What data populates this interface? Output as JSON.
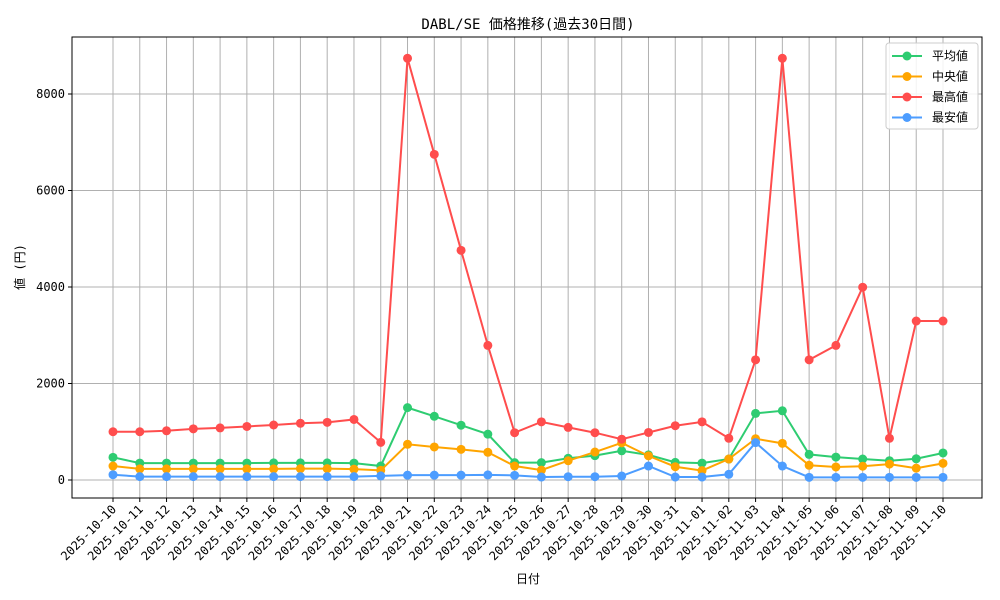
{
  "chart_data": {
    "type": "line",
    "title": "DABL/SE 価格推移(過去30日間)",
    "xlabel": "日付",
    "ylabel": "値 (円)",
    "ylim": [
      -400,
      9150
    ],
    "yticks": [
      0,
      2000,
      4000,
      6000,
      8000
    ],
    "grid": true,
    "legend_position": "upper right",
    "x": [
      "2025-10-10",
      "2025-10-11",
      "2025-10-12",
      "2025-10-13",
      "2025-10-14",
      "2025-10-15",
      "2025-10-16",
      "2025-10-17",
      "2025-10-18",
      "2025-10-19",
      "2025-10-20",
      "2025-10-21",
      "2025-10-22",
      "2025-10-23",
      "2025-10-24",
      "2025-10-25",
      "2025-10-26",
      "2025-10-27",
      "2025-10-28",
      "2025-10-29",
      "2025-10-30",
      "2025-10-31",
      "2025-11-01",
      "2025-11-02",
      "2025-11-03",
      "2025-11-04",
      "2025-11-05",
      "2025-11-06",
      "2025-11-07",
      "2025-11-08",
      "2025-11-09",
      "2025-11-10"
    ],
    "series": [
      {
        "name": "平均値",
        "color": "#2ecc71",
        "values": [
          470,
          350,
          350,
          350,
          350,
          350,
          355,
          355,
          355,
          350,
          290,
          1500,
          1320,
          1135,
          950,
          360,
          360,
          450,
          505,
          605,
          520,
          365,
          350,
          435,
          1380,
          1435,
          530,
          475,
          435,
          400,
          440,
          560
        ]
      },
      {
        "name": "中央値",
        "color": "#ffa500",
        "values": [
          290,
          230,
          230,
          230,
          230,
          230,
          230,
          235,
          235,
          225,
          200,
          740,
          685,
          635,
          575,
          290,
          205,
          400,
          580,
          770,
          500,
          275,
          195,
          435,
          855,
          760,
          305,
          270,
          285,
          330,
          245,
          345
        ]
      },
      {
        "name": "最高値",
        "color": "#ff4d4d",
        "values": [
          1000,
          1000,
          1020,
          1060,
          1080,
          1110,
          1140,
          1175,
          1195,
          1255,
          780,
          8740,
          6750,
          4760,
          2790,
          980,
          1205,
          1090,
          980,
          845,
          985,
          1125,
          1205,
          865,
          2490,
          8740,
          2490,
          2790,
          3995,
          865,
          3295,
          3295
        ]
      },
      {
        "name": "最安値",
        "color": "#4d9dff",
        "values": [
          110,
          70,
          70,
          70,
          70,
          70,
          70,
          70,
          70,
          70,
          85,
          100,
          100,
          100,
          105,
          97,
          62,
          68,
          68,
          83,
          290,
          62,
          62,
          118,
          775,
          290,
          55,
          55,
          55,
          55,
          55,
          55
        ]
      }
    ]
  }
}
